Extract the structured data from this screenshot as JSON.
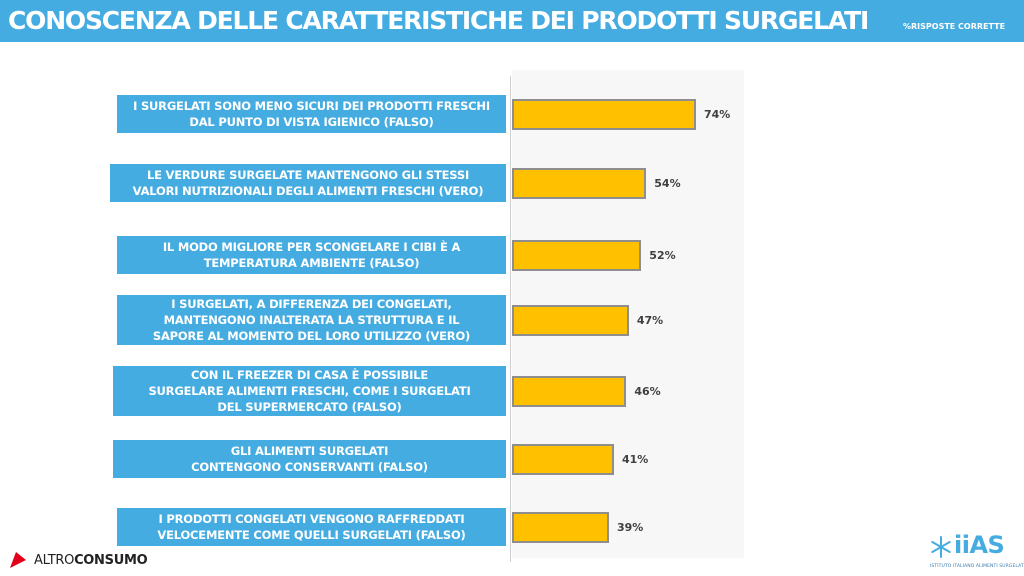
{
  "header": {
    "title": "CONOSCENZA DELLE CARATTERISTICHE DEI PRODOTTI SURGELATI",
    "subtitle": "%RISPOSTE CORRETTE",
    "color": "#45ace1"
  },
  "chart_data": {
    "type": "bar",
    "orientation": "horizontal",
    "title": "CONOSCENZA DELLE CARATTERISTICHE DEI PRODOTTI SURGELATI",
    "subtitle": "%RISPOSTE CORRETTE",
    "xlim": [
      0,
      100
    ],
    "grid": false,
    "bar_color": "#ffc000",
    "label_color": "#45ace1",
    "categories": [
      "I SURGELATI SONO MENO SICURI DEI PRODOTTI FRESCHI\nDAL PUNTO DI VISTA IGIENICO (FALSO)",
      "LE VERDURE SURGELATE MANTENGONO GLI STESSI\nVALORI NUTRIZIONALI DEGLI ALIMENTI FRESCHI (VERO)",
      "IL MODO MIGLIORE PER SCONGELARE I CIBI È A\nTEMPERATURA AMBIENTE (FALSO)",
      "I SURGELATI, A DIFFERENZA DEI CONGELATI,\nMANTENGONO INALTERATA LA STRUTTURA E IL\nSAPORE AL MOMENTO DEL LORO UTILIZZO (VERO)",
      "CON IL FREEZER DI CASA È POSSIBILE\nSURGELARE ALIMENTI FRESCHI,  COME I SURGELATI\nDEL SUPERMERCATO (FALSO)",
      "GLI ALIMENTI SURGELATI\nCONTENGONO CONSERVANTI (FALSO)",
      "I PRODOTTI CONGELATI VENGONO RAFFREDDATI\nVELOCEMENTE COME QUELLI SURGELATI (FALSO)"
    ],
    "values": [
      74,
      54,
      52,
      47,
      46,
      41,
      39
    ],
    "value_labels": [
      "74%",
      "54%",
      "52%",
      "47%",
      "46%",
      "41%",
      "39%"
    ]
  },
  "footer": {
    "left_brand_light": "ALTRO",
    "left_brand_bold": "CONSUMO",
    "right_logo": "iiAS",
    "right_caption": "ISTITUTO ITALIANO ALIMENTI SURGELATI",
    "left_brand_color": "#e3001b"
  }
}
